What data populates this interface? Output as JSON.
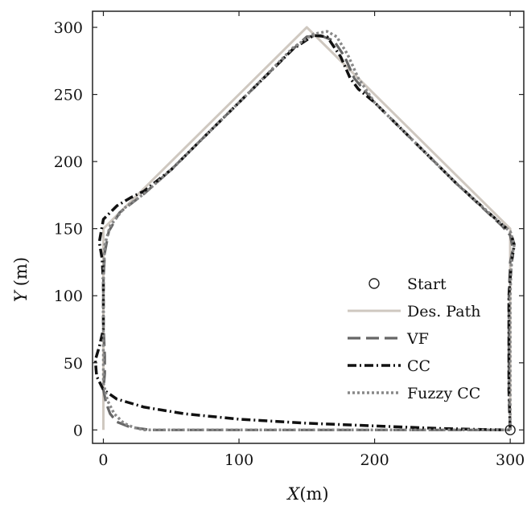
{
  "chart_data": {
    "type": "line",
    "xlabel_italic": "X",
    "xlabel_unit": "(m)",
    "ylabel_italic": "Y",
    "ylabel_unit": "(m)",
    "xlim": [
      -8,
      310
    ],
    "ylim": [
      -10,
      312
    ],
    "xticks": [
      0,
      100,
      200,
      300
    ],
    "yticks": [
      0,
      50,
      100,
      150,
      200,
      250,
      300
    ],
    "legend_position": "bottom-right",
    "series": [
      {
        "name": "Des. Path",
        "key": "des",
        "color": "#cfc8c0",
        "dash": "",
        "width": 3,
        "x": [
          300,
          300,
          150,
          0,
          0
        ],
        "y": [
          0,
          150,
          300,
          150,
          0
        ]
      },
      {
        "name": "VF",
        "key": "vf",
        "color": "#666666",
        "dash": "16,7",
        "width": 3.2,
        "x": [
          300,
          299,
          299,
          300,
          302,
          300,
          294,
          260,
          230,
          200,
          185,
          178,
          170,
          160,
          150,
          140,
          110,
          80,
          50,
          30,
          12,
          4,
          1,
          0,
          0,
          1,
          1,
          0,
          2,
          5,
          10,
          20,
          35,
          100,
          200,
          295,
          300
        ],
        "y": [
          0,
          30,
          100,
          125,
          135,
          145,
          152,
          184,
          214,
          244,
          262,
          278,
          290,
          294,
          293,
          284,
          254,
          224,
          194,
          176,
          162,
          148,
          132,
          110,
          80,
          55,
          42,
          30,
          20,
          12,
          6,
          2,
          0,
          0,
          0,
          0,
          0
        ]
      },
      {
        "name": "CC",
        "key": "cc",
        "color": "#111111",
        "dash": "11,4,2,4",
        "width": 3.5,
        "x": [
          300,
          299,
          299,
          301,
          303,
          300,
          294,
          260,
          230,
          200,
          188,
          182,
          175,
          165,
          155,
          140,
          110,
          80,
          50,
          30,
          20,
          10,
          0,
          -3,
          -1,
          0,
          0,
          -3,
          -6,
          -5,
          0,
          10,
          30,
          60,
          100,
          150,
          200,
          250,
          295,
          300
        ],
        "y": [
          0,
          30,
          100,
          125,
          138,
          148,
          153,
          184,
          214,
          244,
          254,
          262,
          278,
          293,
          294,
          284,
          254,
          224,
          194,
          178,
          173,
          167,
          157,
          140,
          128,
          110,
          75,
          62,
          52,
          40,
          30,
          23,
          17,
          12,
          8,
          5,
          3,
          1,
          0,
          0
        ]
      },
      {
        "name": "Fuzzy CC",
        "key": "fcc",
        "color": "#888888",
        "dash": "3,3",
        "width": 3.5,
        "x": [
          300,
          300,
          300,
          301,
          303,
          300,
          294,
          260,
          230,
          200,
          188,
          180,
          172,
          165,
          155,
          140,
          110,
          80,
          50,
          30,
          15,
          5,
          1,
          0,
          0,
          0,
          0,
          3,
          8,
          15,
          22,
          30,
          100,
          200,
          295,
          300
        ],
        "y": [
          0,
          30,
          100,
          128,
          138,
          148,
          153,
          184,
          214,
          244,
          262,
          280,
          293,
          297,
          295,
          285,
          254,
          224,
          194,
          176,
          165,
          152,
          138,
          110,
          80,
          55,
          35,
          22,
          12,
          5,
          2,
          0,
          0,
          0,
          0,
          0
        ]
      }
    ],
    "start_marker": {
      "name": "Start",
      "x": 300,
      "y": 0
    }
  }
}
